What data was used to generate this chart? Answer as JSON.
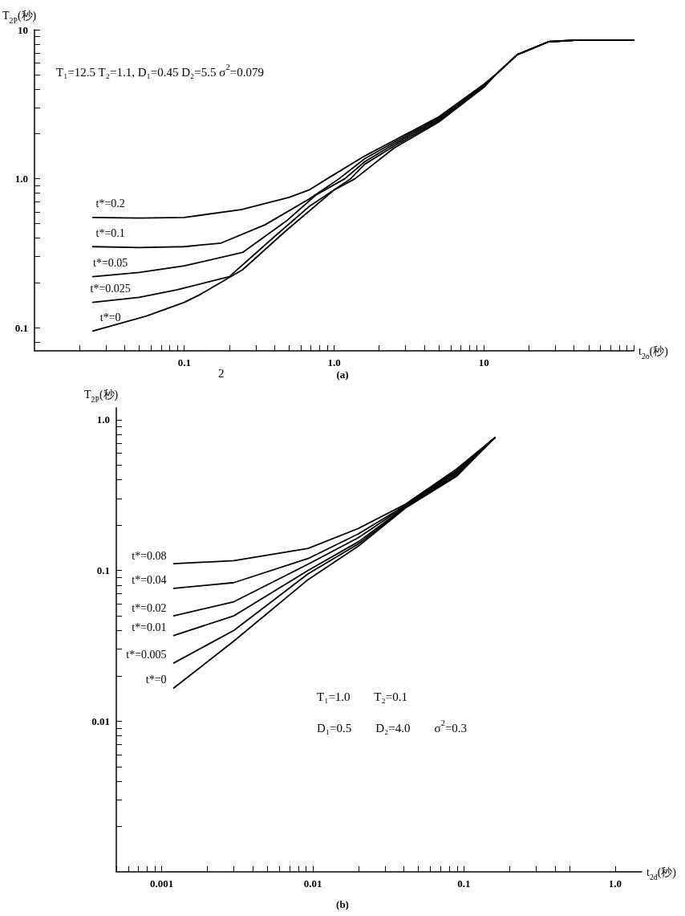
{
  "chart_data": [
    {
      "type": "line",
      "title": "(a)",
      "ylabel": "T$_{2P}$(秒)",
      "xlabel": "t$_{2o}$(秒)",
      "log": "xy",
      "grid": false,
      "legend": false,
      "marker": "none",
      "line_style": "solid",
      "xlim": [
        0.01,
        100
      ],
      "ylim": [
        0.07,
        10
      ],
      "xticks": [
        {
          "value": 0.02,
          "label": null
        },
        {
          "value": 0.03,
          "label": null
        },
        {
          "value": 0.04,
          "label": null
        },
        {
          "value": 0.05,
          "label": null
        },
        {
          "value": 0.06,
          "label": null
        },
        {
          "value": 0.07,
          "label": null
        },
        {
          "value": 0.08,
          "label": null
        },
        {
          "value": 0.09,
          "label": null
        },
        {
          "value": 0.1,
          "label": "0.1"
        },
        {
          "value": 0.2,
          "label": null
        },
        {
          "value": 0.3,
          "label": null
        },
        {
          "value": 0.4,
          "label": null
        },
        {
          "value": 0.5,
          "label": null
        },
        {
          "value": 0.6,
          "label": null
        },
        {
          "value": 0.7,
          "label": null
        },
        {
          "value": 0.8,
          "label": null
        },
        {
          "value": 0.9,
          "label": null
        },
        {
          "value": 1,
          "label": "1.0"
        },
        {
          "value": 2,
          "label": null
        },
        {
          "value": 3,
          "label": null
        },
        {
          "value": 4,
          "label": null
        },
        {
          "value": 5,
          "label": null
        },
        {
          "value": 6,
          "label": null
        },
        {
          "value": 7,
          "label": null
        },
        {
          "value": 8,
          "label": null
        },
        {
          "value": 9,
          "label": null
        },
        10,
        {
          "value": 20,
          "label": null
        },
        {
          "value": 30,
          "label": null
        },
        {
          "value": 40,
          "label": null
        },
        {
          "value": 50,
          "label": null
        },
        {
          "value": 60,
          "label": null
        },
        {
          "value": 70,
          "label": null
        },
        {
          "value": 80,
          "label": null
        },
        {
          "value": 90,
          "label": null
        },
        {
          "value": 100,
          "label": null
        }
      ],
      "yticks": [
        {
          "value": 0.08,
          "label": null
        },
        {
          "value": 0.1,
          "label": "0.1"
        },
        {
          "value": 0.2,
          "label": null
        },
        {
          "value": 0.3,
          "label": null
        },
        {
          "value": 0.4,
          "label": null
        },
        {
          "value": 0.5,
          "label": null
        },
        {
          "value": 0.6,
          "label": null
        },
        {
          "value": 0.7,
          "label": null
        },
        {
          "value": 0.8,
          "label": null
        },
        {
          "value": 0.9,
          "label": null
        },
        {
          "value": 1,
          "label": "1.0"
        },
        {
          "value": 2,
          "label": null
        },
        {
          "value": 3,
          "label": null
        },
        {
          "value": 4,
          "label": null
        },
        {
          "value": 5,
          "label": null
        },
        {
          "value": 6,
          "label": null
        },
        {
          "value": 7,
          "label": null
        },
        {
          "value": 8,
          "label": null
        },
        {
          "value": 9,
          "label": null
        },
        10
      ],
      "annotations": [
        "T₁=12.5 T₂=1.1, D₁=0.45 D₂=5.5 σ$^{2}$=0.079",
        "2"
      ],
      "series": [
        {
          "name": "t*=0.2",
          "color": "#000000",
          "x": [
            0.0245,
            0.05,
            0.1,
            0.24,
            0.5,
            0.68,
            0.9,
            1.6,
            2.5,
            5,
            10,
            12,
            16.7,
            27,
            40,
            100
          ],
          "values": [
            0.55,
            0.545,
            0.55,
            0.62,
            0.75,
            0.84,
            1.0,
            1.42,
            1.8,
            2.6,
            4.3,
            5.0,
            6.8,
            8.3,
            8.5,
            8.5
          ]
        },
        {
          "name": "t*=0.1",
          "color": "#000000",
          "x": [
            0.0245,
            0.05,
            0.1,
            0.176,
            0.345,
            0.68,
            1.08,
            1.6,
            2.5,
            5,
            10,
            12,
            16.7,
            27,
            40,
            100
          ],
          "values": [
            0.35,
            0.345,
            0.35,
            0.37,
            0.49,
            0.73,
            1.0,
            1.36,
            1.75,
            2.55,
            4.25,
            5.0,
            6.8,
            8.3,
            8.5,
            8.5
          ]
        },
        {
          "name": "t*=0.05",
          "color": "#000000",
          "x": [
            0.0245,
            0.05,
            0.1,
            0.245,
            0.48,
            0.76,
            1.18,
            1.6,
            2.5,
            5,
            10,
            12,
            16.7,
            27,
            40,
            100
          ],
          "values": [
            0.22,
            0.235,
            0.26,
            0.32,
            0.52,
            0.78,
            1.0,
            1.3,
            1.7,
            2.5,
            4.2,
            5.0,
            6.8,
            8.3,
            8.5,
            8.5
          ]
        },
        {
          "name": "t*=0.025",
          "color": "#000000",
          "x": [
            0.0245,
            0.05,
            0.09,
            0.2,
            0.39,
            0.68,
            1.29,
            1.6,
            2.5,
            5,
            10,
            12,
            16.7,
            27,
            40,
            100
          ],
          "values": [
            0.148,
            0.16,
            0.18,
            0.22,
            0.4,
            0.65,
            1.0,
            1.25,
            1.65,
            2.45,
            4.15,
            5.0,
            6.8,
            8.3,
            8.5,
            8.5
          ]
        },
        {
          "name": "t*=0",
          "color": "#000000",
          "x": [
            0.0245,
            0.056,
            0.1,
            0.126,
            0.245,
            0.48,
            1.0,
            1.38,
            2.5,
            5,
            10,
            12,
            16.7,
            27,
            40,
            100
          ],
          "values": [
            0.095,
            0.12,
            0.148,
            0.166,
            0.245,
            0.45,
            0.84,
            1.0,
            1.6,
            2.4,
            4.1,
            5.0,
            6.8,
            8.3,
            8.5,
            8.5
          ]
        }
      ]
    },
    {
      "type": "line",
      "title": "(b)",
      "ylabel": "T$_{2P}$(秒)",
      "xlabel": "t$_{2d}$(秒)",
      "log": "xy",
      "grid": false,
      "legend": false,
      "marker": "none",
      "line_style": "solid",
      "xlim": [
        0.0005,
        1.5
      ],
      "ylim": [
        0.001,
        1.2
      ],
      "xticks": [
        {
          "value": 0.0005,
          "label": null
        },
        {
          "value": 0.0006,
          "label": null
        },
        {
          "value": 0.0007,
          "label": null
        },
        {
          "value": 0.0008,
          "label": null
        },
        {
          "value": 0.0009,
          "label": null
        },
        {
          "value": 0.001,
          "label": "0.001"
        },
        {
          "value": 0.002,
          "label": null
        },
        {
          "value": 0.003,
          "label": null
        },
        {
          "value": 0.004,
          "label": null
        },
        {
          "value": 0.005,
          "label": null
        },
        {
          "value": 0.006,
          "label": null
        },
        {
          "value": 0.007,
          "label": null
        },
        {
          "value": 0.008,
          "label": null
        },
        {
          "value": 0.009,
          "label": null
        },
        0.01,
        {
          "value": 0.02,
          "label": null
        },
        {
          "value": 0.03,
          "label": null
        },
        {
          "value": 0.04,
          "label": null
        },
        {
          "value": 0.05,
          "label": null
        },
        {
          "value": 0.06,
          "label": null
        },
        {
          "value": 0.07,
          "label": null
        },
        {
          "value": 0.08,
          "label": null
        },
        {
          "value": 0.09,
          "label": null
        },
        0.1,
        {
          "value": 0.2,
          "label": null
        },
        {
          "value": 0.3,
          "label": null
        },
        {
          "value": 0.4,
          "label": null
        },
        {
          "value": 0.5,
          "label": null
        },
        {
          "value": 1,
          "label": "1.0"
        }
      ],
      "yticks": [
        {
          "value": 0.002,
          "label": null
        },
        {
          "value": 0.003,
          "label": null
        },
        {
          "value": 0.004,
          "label": null
        },
        {
          "value": 0.005,
          "label": null
        },
        {
          "value": 0.006,
          "label": null
        },
        {
          "value": 0.007,
          "label": null
        },
        {
          "value": 0.008,
          "label": null
        },
        {
          "value": 0.009,
          "label": null
        },
        0.01,
        {
          "value": 0.02,
          "label": null
        },
        {
          "value": 0.03,
          "label": null
        },
        {
          "value": 0.04,
          "label": null
        },
        {
          "value": 0.05,
          "label": null
        },
        {
          "value": 0.06,
          "label": null
        },
        {
          "value": 0.07,
          "label": null
        },
        {
          "value": 0.08,
          "label": null
        },
        {
          "value": 0.09,
          "label": null
        },
        0.1,
        {
          "value": 0.2,
          "label": null
        },
        {
          "value": 0.3,
          "label": null
        },
        {
          "value": 0.4,
          "label": null
        },
        {
          "value": 0.5,
          "label": null
        },
        {
          "value": 0.6,
          "label": null
        },
        {
          "value": 0.7,
          "label": null
        },
        {
          "value": 0.8,
          "label": null
        },
        {
          "value": 0.9,
          "label": null
        },
        {
          "value": 1,
          "label": "1.0"
        }
      ],
      "annotations": [
        "T₁=1.0        T₂=0.1",
        "D₁=0.5        D₂=4.0        σ$^{2}$=0.3"
      ],
      "series": [
        {
          "name": "t*=0.08",
          "color": "#000000",
          "x": [
            0.0012,
            0.003,
            0.0093,
            0.02,
            0.041,
            0.089,
            0.16
          ],
          "values": [
            0.111,
            0.116,
            0.14,
            0.19,
            0.275,
            0.47,
            0.76
          ]
        },
        {
          "name": "t*=0.04",
          "color": "#000000",
          "x": [
            0.0012,
            0.003,
            0.0093,
            0.02,
            0.041,
            0.089,
            0.16
          ],
          "values": [
            0.076,
            0.083,
            0.12,
            0.175,
            0.27,
            0.46,
            0.76
          ]
        },
        {
          "name": "t*=0.02",
          "color": "#000000",
          "x": [
            0.0012,
            0.003,
            0.0093,
            0.02,
            0.041,
            0.089,
            0.16
          ],
          "values": [
            0.05,
            0.062,
            0.11,
            0.165,
            0.268,
            0.45,
            0.76
          ]
        },
        {
          "name": "t*=0.01",
          "color": "#000000",
          "x": [
            0.0012,
            0.003,
            0.0093,
            0.02,
            0.041,
            0.089,
            0.16
          ],
          "values": [
            0.037,
            0.05,
            0.1,
            0.155,
            0.265,
            0.44,
            0.76
          ]
        },
        {
          "name": "t*=0.005",
          "color": "#000000",
          "x": [
            0.0012,
            0.003,
            0.0093,
            0.02,
            0.041,
            0.089,
            0.16
          ],
          "values": [
            0.0243,
            0.04,
            0.095,
            0.15,
            0.262,
            0.43,
            0.76
          ]
        },
        {
          "name": "t*=0",
          "color": "#000000",
          "x": [
            0.0012,
            0.003,
            0.0093,
            0.02,
            0.041,
            0.089,
            0.16
          ],
          "values": [
            0.0166,
            0.034,
            0.087,
            0.145,
            0.26,
            0.42,
            0.76
          ]
        }
      ]
    }
  ]
}
